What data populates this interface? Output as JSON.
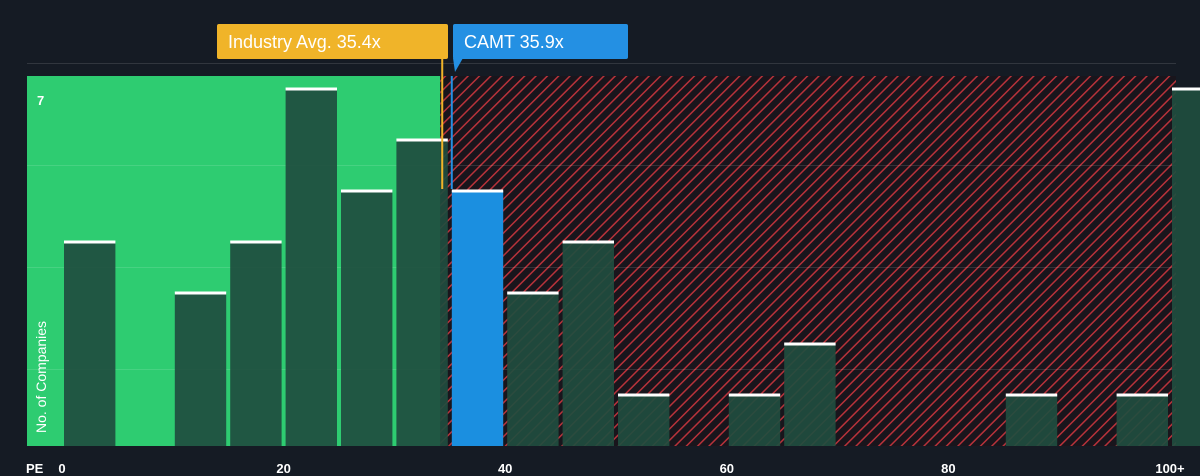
{
  "chart_data": {
    "type": "bar",
    "xlabel": "PE",
    "ylabel": "No. of Companies",
    "xlim": [
      0,
      100
    ],
    "ylim": [
      0,
      7
    ],
    "x_ticks": [
      "0",
      "20",
      "40",
      "60",
      "80",
      "100+"
    ],
    "y_ticks": [
      "7"
    ],
    "bin_width": 5,
    "bins": [
      {
        "start": 0,
        "count": 4
      },
      {
        "start": 5,
        "count": 0
      },
      {
        "start": 10,
        "count": 3
      },
      {
        "start": 15,
        "count": 4
      },
      {
        "start": 20,
        "count": 7
      },
      {
        "start": 25,
        "count": 5
      },
      {
        "start": 30,
        "count": 6
      },
      {
        "start": 35,
        "count": 5
      },
      {
        "start": 40,
        "count": 3
      },
      {
        "start": 45,
        "count": 4
      },
      {
        "start": 50,
        "count": 1
      },
      {
        "start": 55,
        "count": 0
      },
      {
        "start": 60,
        "count": 1
      },
      {
        "start": 65,
        "count": 2
      },
      {
        "start": 70,
        "count": 0
      },
      {
        "start": 75,
        "count": 0
      },
      {
        "start": 80,
        "count": 0
      },
      {
        "start": 85,
        "count": 1
      },
      {
        "start": 90,
        "count": 0
      },
      {
        "start": 95,
        "count": 1
      },
      {
        "start": 100,
        "count": 7
      }
    ],
    "highlighted_bin_start": 35,
    "industry_avg": 35.4,
    "company_value": 35.9,
    "annotations": {
      "industry_label": "Industry Avg. 35.4x",
      "company_label": "CAMT 35.9x"
    },
    "grid": true,
    "colors": {
      "background": "#151b24",
      "undervalued_zone": "#2ecc71",
      "overvalued_hatch": "#b8323a",
      "bar": "#1f4d3f",
      "bar_top": "#ffffff",
      "company_bar": "#1b8fe0",
      "industry_callout": "#f0b429",
      "company_callout": "#2490e3"
    }
  }
}
